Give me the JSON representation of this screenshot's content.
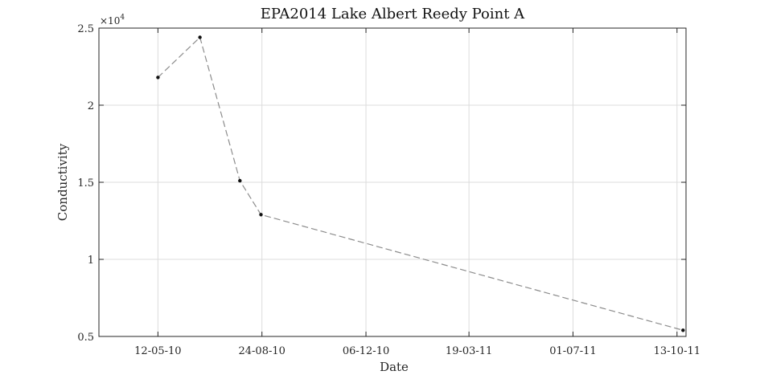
{
  "chart_data": {
    "type": "line",
    "title": "EPA2014 Lake Albert Reedy Point A",
    "xlabel": "Date",
    "ylabel": "Conductivity",
    "y_exponent_label": "×10",
    "y_exponent_power": "4",
    "y_tick_labels": [
      "0.5",
      "1",
      "1.5",
      "2",
      "2.5"
    ],
    "y_ticks": [
      5000,
      10000,
      15000,
      20000,
      25000
    ],
    "ylim": [
      5000,
      25000
    ],
    "x_tick_labels": [
      "12-05-10",
      "24-08-10",
      "06-12-10",
      "19-03-11",
      "01-07-11",
      "13-10-11"
    ],
    "x_ticks": [
      "2010-05-12",
      "2010-08-24",
      "2010-12-06",
      "2011-03-19",
      "2011-07-01",
      "2011-10-13"
    ],
    "xlim": [
      "2010-03-14",
      "2011-10-22"
    ],
    "grid": true,
    "line_style": "dashed",
    "line_color": "#8c8c8c",
    "marker_color": "#111111",
    "series": [
      {
        "x": [
          "2010-05-12",
          "2010-06-23",
          "2010-08-02",
          "2010-08-23",
          "2011-10-19"
        ],
        "y": [
          21800,
          24400,
          15100,
          12900,
          5400
        ]
      }
    ]
  }
}
